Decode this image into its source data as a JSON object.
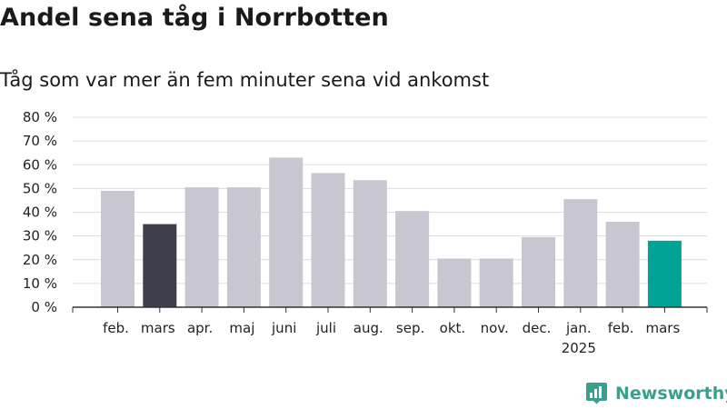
{
  "header": {
    "title": "Andel sena tåg i Norrbotten",
    "subtitle": "Tåg som var mer än fem minuter sena vid ankomst"
  },
  "brand": {
    "name": "Newsworthy",
    "icon": "newsworthy-logo-icon",
    "color": "#3aa08e"
  },
  "colors": {
    "default_bar": "#c8c7d1",
    "highlight_previous_year": "#3f3e4d",
    "highlight_current": "#00a396",
    "grid": "#dcdcdc",
    "axis": "#333333"
  },
  "chart_data": {
    "type": "bar",
    "title": "Andel sena tåg i Norrbotten",
    "subtitle": "Tåg som var mer än fem minuter sena vid ankomst",
    "xlabel": "",
    "ylabel": "",
    "ylim": [
      0,
      80
    ],
    "yticks": [
      0,
      10,
      20,
      30,
      40,
      50,
      60,
      70,
      80
    ],
    "ytick_labels": [
      "0 %",
      "10 %",
      "20 %",
      "30 %",
      "40 %",
      "50 %",
      "60 %",
      "70 %",
      "80 %"
    ],
    "grid": true,
    "categories": [
      "feb.",
      "mars",
      "apr.",
      "maj",
      "juni",
      "juli",
      "aug.",
      "sep.",
      "okt.",
      "nov.",
      "dec.",
      "jan.",
      "feb.",
      "mars"
    ],
    "category_sublabels": [
      "",
      "",
      "",
      "",
      "",
      "",
      "",
      "",
      "",
      "",
      "",
      "2025",
      "",
      ""
    ],
    "values": [
      49,
      35,
      50.5,
      50.5,
      63,
      56.5,
      53.5,
      40.5,
      20.5,
      20.5,
      29.5,
      45.5,
      36,
      28
    ],
    "highlights": [
      "default",
      "previous_year",
      "default",
      "default",
      "default",
      "default",
      "default",
      "default",
      "default",
      "default",
      "default",
      "default",
      "default",
      "current"
    ]
  }
}
